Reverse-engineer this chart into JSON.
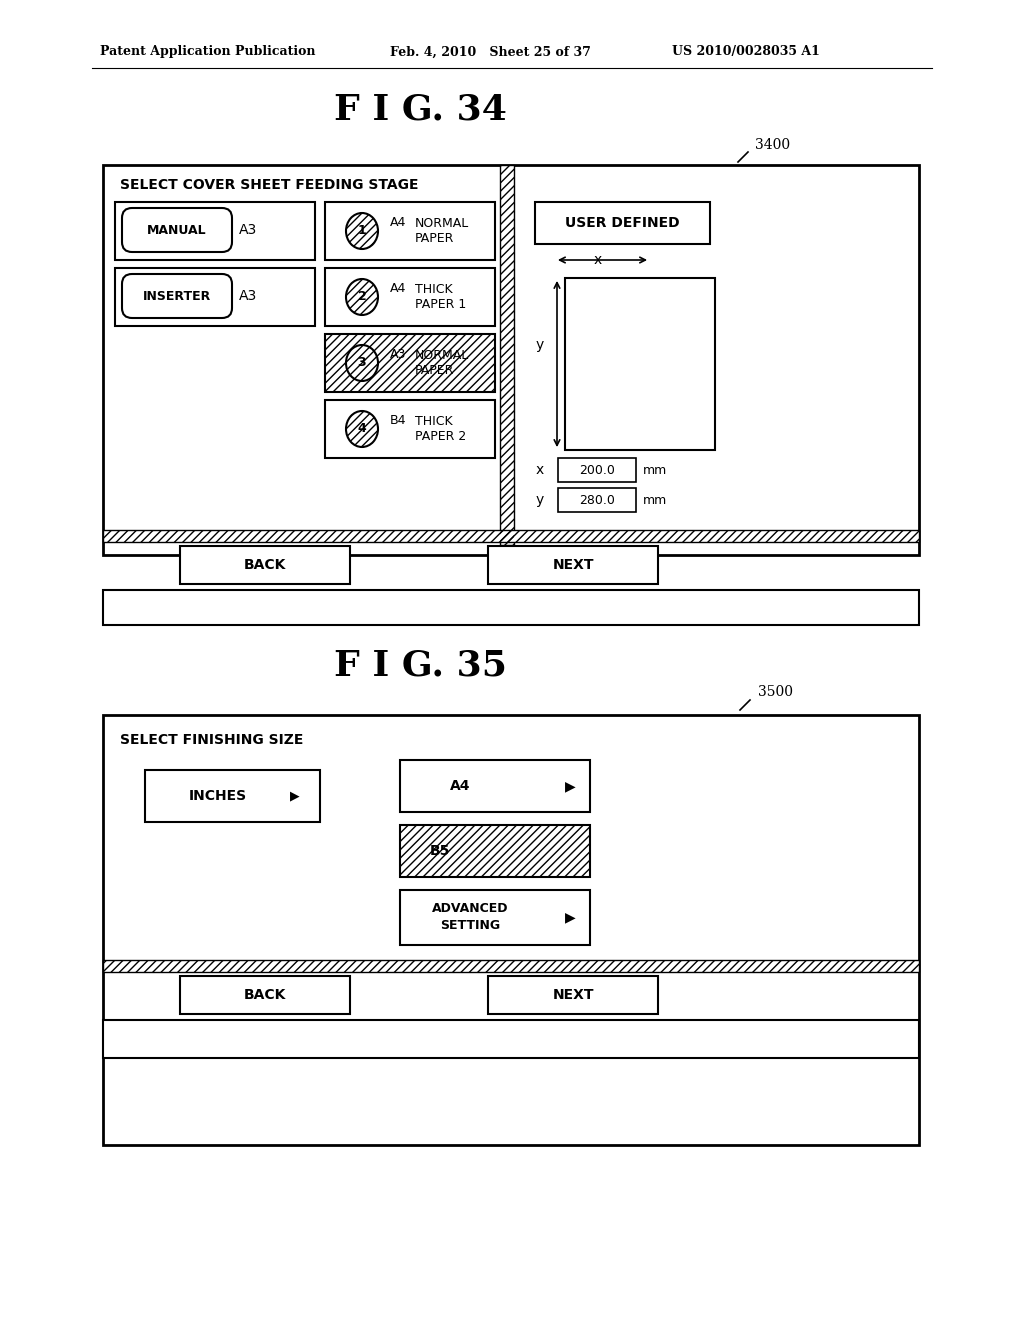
{
  "header_left": "Patent Application Publication",
  "header_mid": "Feb. 4, 2010   Sheet 25 of 37",
  "header_right": "US 2010/0028035 A1",
  "fig34_title": "F I G. 34",
  "fig34_label": "3400",
  "fig34_screen_title": "SELECT COVER SHEET FEEDING STAGE",
  "fig34_btn1": "MANUAL",
  "fig34_btn1b": "A3",
  "fig34_btn2": "INSERTER",
  "fig34_btn2b": "A3",
  "fig34_paper1_num": "1",
  "fig34_paper1_size": "A4",
  "fig34_paper1_text": "NORMAL\nPAPER",
  "fig34_paper2_num": "2",
  "fig34_paper2_size": "A4",
  "fig34_paper2_text": "THICK\nPAPER 1",
  "fig34_paper3_num": "3",
  "fig34_paper3_size": "A3",
  "fig34_paper3_text": "NORMAL\nPAPER",
  "fig34_paper4_num": "4",
  "fig34_paper4_size": "B4",
  "fig34_paper4_text": "THICK\nPAPER 2",
  "fig34_user_defined": "USER DEFINED",
  "fig34_x_label": "x",
  "fig34_y_label": "y",
  "fig34_x_val": "200.0",
  "fig34_y_val": "280.0",
  "fig34_mm1": "mm",
  "fig34_mm2": "mm",
  "fig34_back": "BACK",
  "fig34_next": "NEXT",
  "fig35_title": "F I G. 35",
  "fig35_label": "3500",
  "fig35_screen_title": "SELECT FINISHING SIZE",
  "fig35_btn_a4": "A4",
  "fig35_btn_b5": "B5",
  "fig35_btn_adv": "ADVANCED\nSETTING",
  "fig35_btn_inches": "INCHES",
  "fig35_back": "BACK",
  "fig35_next": "NEXT",
  "bg_color": "#ffffff"
}
